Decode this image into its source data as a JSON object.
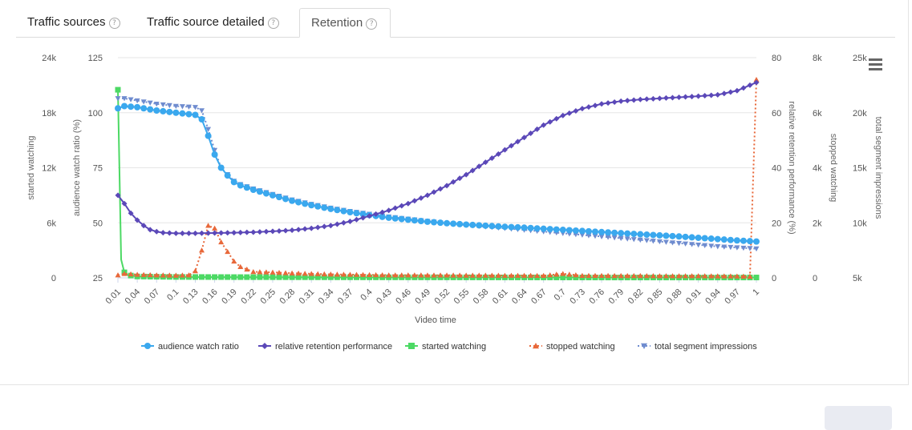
{
  "tabs": [
    {
      "label": "Traffic sources",
      "help": "?",
      "active": false
    },
    {
      "label": "Traffic source detailed",
      "help": "?",
      "active": false
    },
    {
      "label": "Retention",
      "help": "?",
      "active": true
    }
  ],
  "chart_data": {
    "type": "line",
    "xlabel": "Video time",
    "x_tick_labels": [
      "0.01",
      "0.04",
      "0.07",
      "0.1",
      "0.13",
      "0.16",
      "0.19",
      "0.22",
      "0.25",
      "0.28",
      "0.31",
      "0.34",
      "0.37",
      "0.4",
      "0.43",
      "0.46",
      "0.49",
      "0.52",
      "0.55",
      "0.58",
      "0.61",
      "0.64",
      "0.67",
      "0.7",
      "0.73",
      "0.76",
      "0.79",
      "0.82",
      "0.85",
      "0.88",
      "0.91",
      "0.94",
      "0.97",
      "1"
    ],
    "x_range": [
      0.01,
      1
    ],
    "axes": [
      {
        "id": "started",
        "label": "started watching",
        "side": "left",
        "range": [
          0,
          24000
        ],
        "ticks": [
          "0",
          "6k",
          "12k",
          "18k",
          "24k"
        ]
      },
      {
        "id": "ratio",
        "label": "audience watch ratio (%)",
        "side": "left",
        "range": [
          25,
          125
        ],
        "ticks": [
          "25",
          "50",
          "75",
          "100",
          "125"
        ]
      },
      {
        "id": "relative",
        "label": "relative retention performance (%)",
        "side": "right",
        "range": [
          0,
          80
        ],
        "ticks": [
          "0",
          "20",
          "40",
          "60",
          "80"
        ]
      },
      {
        "id": "stopped",
        "label": "stopped watching",
        "side": "right",
        "range": [
          0,
          8000
        ],
        "ticks": [
          "0",
          "2k",
          "4k",
          "6k",
          "8k"
        ]
      },
      {
        "id": "impressions",
        "label": "total segment impressions",
        "side": "right",
        "range": [
          5000,
          25000
        ],
        "ticks": [
          "5k",
          "10k",
          "15k",
          "20k",
          "25k"
        ]
      }
    ],
    "grid": true,
    "legend_position": "bottom",
    "series": [
      {
        "name": "audience watch ratio",
        "axis": "ratio",
        "color": "#3aa8ee",
        "marker": "circle",
        "line": "solid",
        "x": [
          0.01,
          0.02,
          0.04,
          0.07,
          0.1,
          0.13,
          0.14,
          0.15,
          0.16,
          0.17,
          0.18,
          0.19,
          0.2,
          0.22,
          0.25,
          0.28,
          0.31,
          0.34,
          0.37,
          0.4,
          0.43,
          0.46,
          0.49,
          0.52,
          0.55,
          0.58,
          0.61,
          0.64,
          0.67,
          0.7,
          0.73,
          0.76,
          0.79,
          0.82,
          0.85,
          0.88,
          0.91,
          0.94,
          0.97,
          1.0
        ],
        "y": [
          102,
          103,
          102.5,
          101,
          100,
          99,
          97,
          89.5,
          81,
          75,
          71.5,
          68.5,
          67,
          65,
          62.5,
          60,
          58,
          56.3,
          54.8,
          53.5,
          52.3,
          51.4,
          50.5,
          49.8,
          49.2,
          48.7,
          48.2,
          47.8,
          47.3,
          46.8,
          46.3,
          45.8,
          45.3,
          44.8,
          44.3,
          43.8,
          43.2,
          42.6,
          42,
          41.5
        ]
      },
      {
        "name": "relative retention performance",
        "axis": "relative",
        "color": "#5b48b8",
        "marker": "diamond",
        "line": "solid",
        "x": [
          0.01,
          0.02,
          0.03,
          0.04,
          0.05,
          0.06,
          0.07,
          0.08,
          0.1,
          0.13,
          0.16,
          0.19,
          0.22,
          0.25,
          0.28,
          0.31,
          0.34,
          0.37,
          0.4,
          0.43,
          0.46,
          0.49,
          0.52,
          0.55,
          0.58,
          0.61,
          0.64,
          0.67,
          0.7,
          0.73,
          0.76,
          0.79,
          0.82,
          0.85,
          0.88,
          0.91,
          0.94,
          0.97,
          1.0
        ],
        "y": [
          30,
          27,
          23.5,
          21,
          19,
          17.5,
          16.8,
          16.4,
          16.2,
          16.2,
          16.3,
          16.4,
          16.6,
          16.9,
          17.3,
          18,
          19,
          20.5,
          22.5,
          24.5,
          27,
          30,
          33.5,
          37.5,
          42,
          46.5,
          51,
          55.5,
          59,
          61.5,
          63.2,
          64.2,
          64.8,
          65.2,
          65.6,
          66,
          66.5,
          68,
          71
        ]
      },
      {
        "name": "started watching",
        "axis": "started",
        "color": "#4cd964",
        "marker": "square",
        "line": "solid",
        "x": [
          0.01,
          0.015,
          0.02,
          0.025,
          0.04,
          0.1,
          0.2,
          0.4,
          0.6,
          0.8,
          1.0
        ],
        "y": [
          20500,
          2000,
          600,
          300,
          150,
          100,
          80,
          60,
          50,
          40,
          40
        ]
      },
      {
        "name": "stopped watching",
        "axis": "stopped",
        "color": "#e8683a",
        "marker": "triangle",
        "line": "dotted",
        "x": [
          0.01,
          0.02,
          0.04,
          0.07,
          0.1,
          0.12,
          0.13,
          0.14,
          0.15,
          0.16,
          0.17,
          0.18,
          0.19,
          0.2,
          0.22,
          0.25,
          0.28,
          0.31,
          0.34,
          0.37,
          0.4,
          0.43,
          0.46,
          0.49,
          0.52,
          0.55,
          0.58,
          0.61,
          0.64,
          0.67,
          0.7,
          0.73,
          0.76,
          0.79,
          0.82,
          0.85,
          0.88,
          0.91,
          0.94,
          0.97,
          0.99,
          1.0
        ],
        "y": [
          100,
          150,
          120,
          100,
          90,
          100,
          250,
          1000,
          1900,
          1800,
          1300,
          950,
          600,
          400,
          220,
          200,
          170,
          150,
          130,
          120,
          110,
          100,
          100,
          95,
          95,
          90,
          90,
          85,
          85,
          80,
          150,
          80,
          80,
          75,
          75,
          70,
          70,
          70,
          65,
          60,
          50,
          7200
        ]
      },
      {
        "name": "total segment impressions",
        "axis": "impressions",
        "color": "#6f8ccf",
        "marker": "triangle-down",
        "line": "dotted",
        "x": [
          0.01,
          0.02,
          0.04,
          0.07,
          0.1,
          0.13,
          0.14,
          0.15,
          0.16,
          0.17,
          0.18,
          0.19,
          0.2,
          0.22,
          0.25,
          0.28,
          0.31,
          0.34,
          0.37,
          0.4,
          0.43,
          0.46,
          0.49,
          0.52,
          0.55,
          0.58,
          0.61,
          0.64,
          0.67,
          0.7,
          0.73,
          0.76,
          0.79,
          0.82,
          0.85,
          0.88,
          0.91,
          0.94,
          0.97,
          1.0
        ],
        "y": [
          21300,
          21300,
          21100,
          20800,
          20600,
          20500,
          20200,
          18500,
          16600,
          15000,
          14400,
          13800,
          13500,
          13100,
          12600,
          12100,
          11700,
          11350,
          11050,
          10800,
          10550,
          10350,
          10150,
          9950,
          9800,
          9650,
          9500,
          9350,
          9200,
          9050,
          8900,
          8750,
          8600,
          8450,
          8300,
          8150,
          8000,
          7850,
          7750,
          7650
        ]
      }
    ]
  }
}
